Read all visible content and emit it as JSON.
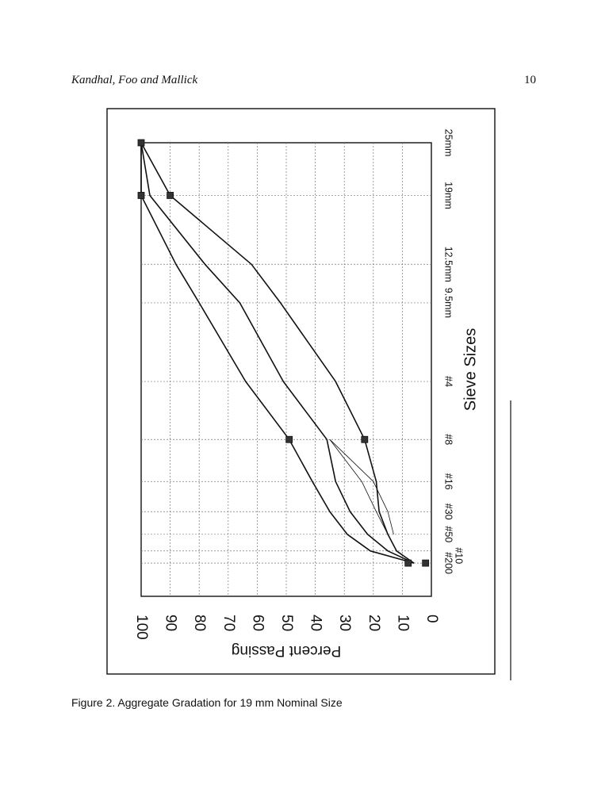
{
  "header": {
    "authors": "Kandhal, Foo and Mallick",
    "page_number": "10"
  },
  "caption": "Figure 2. Aggregate Gradation for 19 mm Nominal Size",
  "chart_data": {
    "type": "line",
    "orientation": "rotated 90 degrees clockwise on page",
    "xlabel": "Sieve Sizes",
    "ylabel": "Percent Passing",
    "ylim": [
      0,
      100
    ],
    "y_ticks": [
      "0",
      "10",
      "20",
      "30",
      "40",
      "50",
      "60",
      "70",
      "80",
      "90",
      "100"
    ],
    "x_scale": "0.45 power of sieve opening (mm)",
    "x_ticks": [
      {
        "label": "#200",
        "mm": 0.075
      },
      {
        "label": "#50",
        "mm": 0.3
      },
      {
        "label": "#30",
        "mm": 0.6
      },
      {
        "label": "#16",
        "mm": 1.18
      },
      {
        "label": "#8",
        "mm": 2.36
      },
      {
        "label": "#4",
        "mm": 4.75
      },
      {
        "label": "9.5mm",
        "mm": 9.5
      },
      {
        "label": "12.5mm",
        "mm": 12.5
      },
      {
        "label": "19mm",
        "mm": 19
      },
      {
        "label": "25mm",
        "mm": 25
      }
    ],
    "x_tick_extra": {
      "label": "#10",
      "mm": 0.15
    },
    "grid": true,
    "series": [
      {
        "role": "upper",
        "x_mm": [
          0.075,
          0.15,
          0.3,
          0.6,
          1.18,
          2.36,
          4.75,
          9.5,
          12.5,
          19,
          25
        ],
        "values": [
          6,
          21,
          29,
          35,
          41,
          49,
          64,
          80,
          88,
          100,
          100
        ]
      },
      {
        "role": "middle",
        "x_mm": [
          0.075,
          0.15,
          0.3,
          0.6,
          1.18,
          2.36,
          4.75,
          9.5,
          12.5,
          19,
          25
        ],
        "values": [
          6,
          15,
          22,
          28,
          33,
          36,
          51,
          66,
          78,
          97,
          100
        ]
      },
      {
        "role": "lower",
        "x_mm": [
          0.075,
          0.15,
          0.3,
          0.6,
          1.18,
          2.36,
          4.75,
          9.5,
          12.5,
          19,
          25
        ],
        "values": [
          6,
          12,
          15,
          18,
          19,
          23,
          33,
          52,
          62,
          90,
          100
        ]
      },
      {
        "role": "restricted-zone-upper",
        "x_mm": [
          0.3,
          0.6,
          1.18,
          2.36
        ],
        "values": [
          15,
          19,
          24,
          35
        ]
      },
      {
        "role": "restricted-zone-lower",
        "x_mm": [
          0.3,
          0.6,
          1.18,
          2.36
        ],
        "values": [
          13,
          15,
          20,
          35
        ]
      }
    ],
    "markers": [
      {
        "x_mm": 0.075,
        "value": 2
      },
      {
        "x_mm": 0.075,
        "value": 8
      },
      {
        "x_mm": 2.36,
        "value": 23
      },
      {
        "x_mm": 2.36,
        "value": 49
      },
      {
        "x_mm": 19,
        "value": 90
      },
      {
        "x_mm": 19,
        "value": 100
      },
      {
        "x_mm": 25,
        "value": 100
      }
    ]
  }
}
